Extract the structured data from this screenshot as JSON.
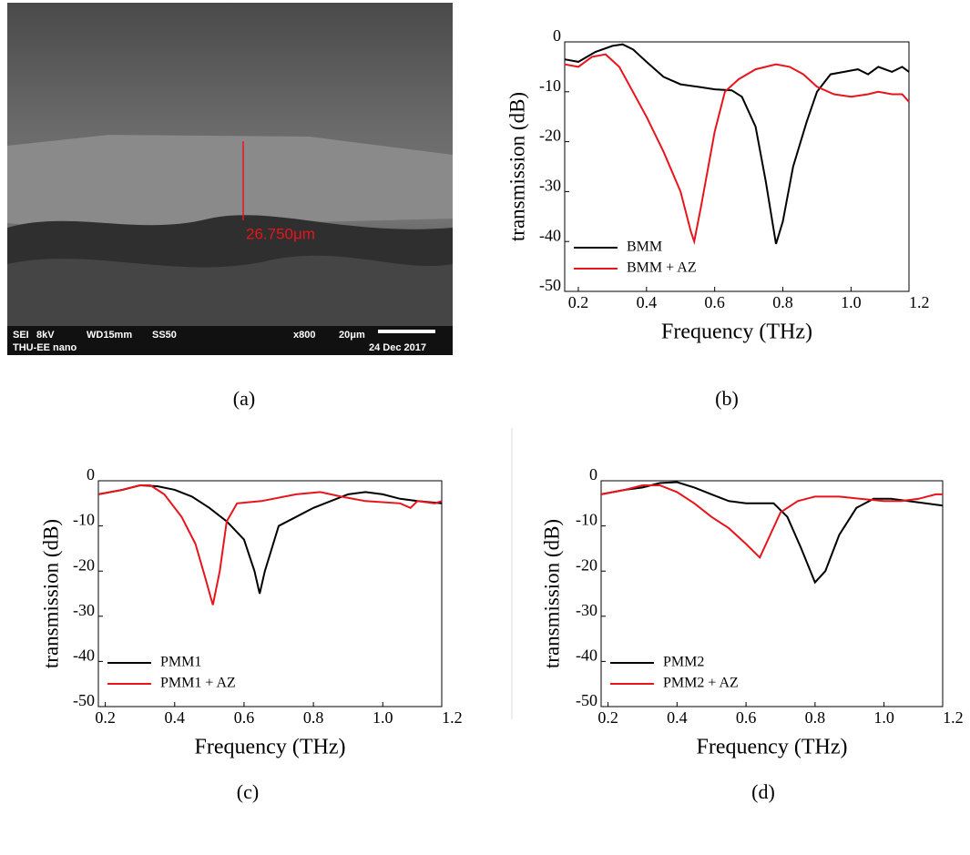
{
  "image": {
    "caption": "(a)",
    "measurement": "26.750μm",
    "footer": [
      "SEI",
      "8kV",
      "WD15mm",
      "SS50",
      "x800",
      "20μm",
      "THU-EE nano",
      "24 Dec 2017"
    ]
  },
  "chart_data": [
    {
      "type": "line",
      "caption": "(b)",
      "x_label": "Frequency (THz)",
      "y_label": "transmission (dB)",
      "xlim": [
        0.16,
        1.17
      ],
      "ylim": [
        -50,
        0
      ],
      "xticks": [
        0.2,
        0.4,
        0.6,
        0.8,
        {
          "value": 1,
          "label": "1.0"
        },
        1.2
      ],
      "yticks": [
        0,
        -10,
        -20,
        -30,
        -40,
        -50
      ],
      "legend": "lower left",
      "series": [
        {
          "name": "BMM",
          "color": "#000000",
          "x": [
            0.16,
            0.2,
            0.25,
            0.3,
            0.33,
            0.36,
            0.4,
            0.45,
            0.5,
            0.55,
            0.6,
            0.65,
            0.68,
            0.72,
            0.75,
            0.78,
            0.8,
            0.83,
            0.87,
            0.9,
            0.94,
            0.98,
            1.02,
            1.05,
            1.08,
            1.12,
            1.15,
            1.17
          ],
          "values": [
            -3.5,
            -4,
            -2,
            -0.8,
            -0.5,
            -1.5,
            -4,
            -7,
            -8.5,
            -9,
            -9.5,
            -9.7,
            -11,
            -17,
            -28,
            -40.5,
            -36,
            -25,
            -16,
            -10,
            -6.5,
            -6,
            -5.5,
            -6.5,
            -5,
            -6,
            -5,
            -6
          ]
        },
        {
          "name": "BMM + AZ",
          "color": "#e8141c",
          "x": [
            0.16,
            0.2,
            0.24,
            0.28,
            0.32,
            0.36,
            0.4,
            0.45,
            0.5,
            0.53,
            0.54,
            0.56,
            0.6,
            0.63,
            0.67,
            0.72,
            0.78,
            0.82,
            0.86,
            0.9,
            0.95,
            1.0,
            1.05,
            1.08,
            1.12,
            1.15,
            1.17
          ],
          "values": [
            -4.5,
            -5,
            -3,
            -2.5,
            -5,
            -10,
            -15,
            -22,
            -30,
            -38,
            -40,
            -33,
            -18,
            -10,
            -7.5,
            -5.5,
            -4.5,
            -5,
            -6.5,
            -9,
            -10.5,
            -11,
            -10.5,
            -10,
            -10.5,
            -10.5,
            -12
          ]
        }
      ]
    },
    {
      "type": "line",
      "caption": "(c)",
      "x_label": "Frequency (THz)",
      "y_label": "transmission (dB)",
      "xlim": [
        0.18,
        1.17
      ],
      "ylim": [
        -50,
        0
      ],
      "xticks": [
        0.2,
        0.4,
        0.6,
        0.8,
        {
          "value": 1,
          "label": "1.0"
        },
        1.2
      ],
      "yticks": [
        0,
        -10,
        -20,
        -30,
        -40,
        -50
      ],
      "legend": "lower left",
      "series": [
        {
          "name": "PMM1",
          "color": "#000000",
          "x": [
            0.18,
            0.25,
            0.3,
            0.35,
            0.4,
            0.45,
            0.5,
            0.55,
            0.6,
            0.63,
            0.645,
            0.66,
            0.7,
            0.75,
            0.8,
            0.85,
            0.9,
            0.95,
            1.0,
            1.05,
            1.1,
            1.17
          ],
          "values": [
            -3,
            -2,
            -1,
            -1.2,
            -2,
            -3.5,
            -6,
            -9,
            -13,
            -20,
            -25,
            -20,
            -10,
            -8,
            -6,
            -4.5,
            -3,
            -2.5,
            -3,
            -4,
            -4.5,
            -5
          ]
        },
        {
          "name": "PMM1 + AZ",
          "color": "#e8141c",
          "x": [
            0.18,
            0.25,
            0.3,
            0.33,
            0.37,
            0.42,
            0.46,
            0.49,
            0.51,
            0.53,
            0.55,
            0.58,
            0.65,
            0.75,
            0.82,
            0.88,
            0.95,
            1.05,
            1.08,
            1.1,
            1.15,
            1.17
          ],
          "values": [
            -3,
            -2,
            -1,
            -1,
            -3,
            -8,
            -14,
            -22,
            -27.5,
            -20,
            -9,
            -5,
            -4.5,
            -3,
            -2.5,
            -3.5,
            -4.5,
            -5,
            -6,
            -4.5,
            -5,
            -4.5
          ]
        }
      ]
    },
    {
      "type": "line",
      "caption": "(d)",
      "x_label": "Frequency (THz)",
      "y_label": "transmission (dB)",
      "xlim": [
        0.18,
        1.17
      ],
      "ylim": [
        -50,
        0
      ],
      "xticks": [
        0.2,
        0.4,
        0.6,
        0.8,
        {
          "value": 1,
          "label": "1.0"
        },
        1.2
      ],
      "yticks": [
        0,
        -10,
        -20,
        -30,
        -40,
        -50
      ],
      "legend": "lower left",
      "series": [
        {
          "name": "PMM2",
          "color": "#000000",
          "x": [
            0.18,
            0.25,
            0.3,
            0.35,
            0.4,
            0.45,
            0.5,
            0.55,
            0.6,
            0.68,
            0.72,
            0.76,
            0.8,
            0.83,
            0.87,
            0.92,
            0.97,
            1.02,
            1.07,
            1.12,
            1.17
          ],
          "values": [
            -3,
            -2,
            -1.5,
            -0.5,
            -0.3,
            -1.5,
            -3,
            -4.5,
            -5,
            -5,
            -8,
            -15,
            -22.5,
            -20,
            -12,
            -6,
            -4,
            -4,
            -4.5,
            -5,
            -5.5
          ]
        },
        {
          "name": "PMM2 + AZ",
          "color": "#e8141c",
          "x": [
            0.18,
            0.25,
            0.3,
            0.35,
            0.4,
            0.45,
            0.5,
            0.55,
            0.6,
            0.64,
            0.67,
            0.7,
            0.75,
            0.8,
            0.87,
            0.93,
            1.0,
            1.05,
            1.1,
            1.15,
            1.17
          ],
          "values": [
            -3,
            -2,
            -1,
            -1,
            -2.5,
            -5,
            -8,
            -10.5,
            -14,
            -17,
            -12,
            -7,
            -4.5,
            -3.5,
            -3.5,
            -4,
            -4.5,
            -4.5,
            -4,
            -3,
            -3
          ]
        }
      ]
    }
  ]
}
